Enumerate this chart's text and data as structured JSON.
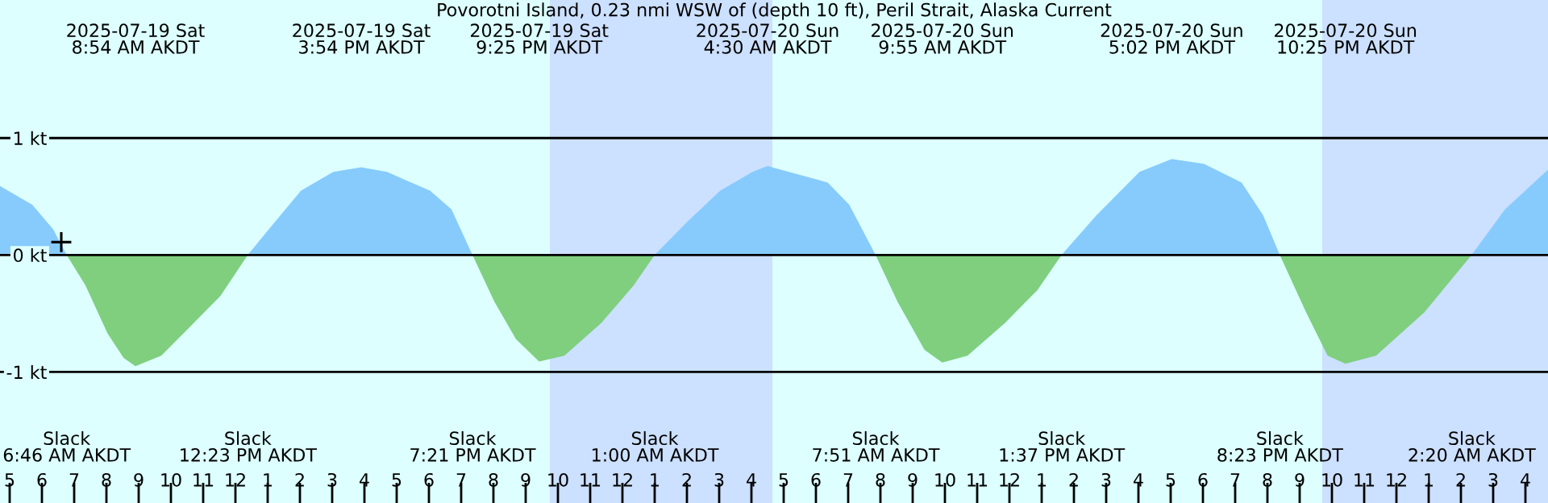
{
  "chart_data": {
    "type": "area",
    "title": "Povorotni Island, 0.23 nmi WSW of (depth 10 ft), Peril Strait, Alaska Current",
    "xlim": [
      "2025-07-19T04:42",
      "2025-07-21T04:42"
    ],
    "ylim": [
      -2.12,
      2.18
    ],
    "xticks": [
      {
        "value": "2025-07-19T05:00",
        "label": "5"
      },
      {
        "value": "2025-07-19T06:00",
        "label": "6"
      },
      {
        "value": "2025-07-19T07:00",
        "label": "7"
      },
      {
        "value": "2025-07-19T08:00",
        "label": "8"
      },
      {
        "value": "2025-07-19T09:00",
        "label": "9"
      },
      {
        "value": "2025-07-19T10:00",
        "label": "10"
      },
      {
        "value": "2025-07-19T11:00",
        "label": "11"
      },
      {
        "value": "2025-07-19T12:00",
        "label": "12"
      },
      {
        "value": "2025-07-19T13:00",
        "label": "1"
      },
      {
        "value": "2025-07-19T14:00",
        "label": "2"
      },
      {
        "value": "2025-07-19T15:00",
        "label": "3"
      },
      {
        "value": "2025-07-19T16:00",
        "label": "4"
      },
      {
        "value": "2025-07-19T17:00",
        "label": "5"
      },
      {
        "value": "2025-07-19T18:00",
        "label": "6"
      },
      {
        "value": "2025-07-19T19:00",
        "label": "7"
      },
      {
        "value": "2025-07-19T20:00",
        "label": "8"
      },
      {
        "value": "2025-07-19T21:00",
        "label": "9"
      },
      {
        "value": "2025-07-19T22:00",
        "label": "10"
      },
      {
        "value": "2025-07-19T23:00",
        "label": "11"
      },
      {
        "value": "2025-07-20T00:00",
        "label": "12"
      },
      {
        "value": "2025-07-20T01:00",
        "label": "1"
      },
      {
        "value": "2025-07-20T02:00",
        "label": "2"
      },
      {
        "value": "2025-07-20T03:00",
        "label": "3"
      },
      {
        "value": "2025-07-20T04:00",
        "label": "4"
      },
      {
        "value": "2025-07-20T05:00",
        "label": "5"
      },
      {
        "value": "2025-07-20T06:00",
        "label": "6"
      },
      {
        "value": "2025-07-20T07:00",
        "label": "7"
      },
      {
        "value": "2025-07-20T08:00",
        "label": "8"
      },
      {
        "value": "2025-07-20T09:00",
        "label": "9"
      },
      {
        "value": "2025-07-20T10:00",
        "label": "10"
      },
      {
        "value": "2025-07-20T11:00",
        "label": "11"
      },
      {
        "value": "2025-07-20T12:00",
        "label": "12"
      },
      {
        "value": "2025-07-20T13:00",
        "label": "1"
      },
      {
        "value": "2025-07-20T14:00",
        "label": "2"
      },
      {
        "value": "2025-07-20T15:00",
        "label": "3"
      },
      {
        "value": "2025-07-20T16:00",
        "label": "4"
      },
      {
        "value": "2025-07-20T17:00",
        "label": "5"
      },
      {
        "value": "2025-07-20T18:00",
        "label": "6"
      },
      {
        "value": "2025-07-20T19:00",
        "label": "7"
      },
      {
        "value": "2025-07-20T20:00",
        "label": "8"
      },
      {
        "value": "2025-07-20T21:00",
        "label": "9"
      },
      {
        "value": "2025-07-20T22:00",
        "label": "10"
      },
      {
        "value": "2025-07-20T23:00",
        "label": "11"
      },
      {
        "value": "2025-07-21T00:00",
        "label": "12"
      },
      {
        "value": "2025-07-21T01:00",
        "label": "1"
      },
      {
        "value": "2025-07-21T02:00",
        "label": "2"
      },
      {
        "value": "2025-07-21T03:00",
        "label": "3"
      },
      {
        "value": "2025-07-21T04:00",
        "label": "4"
      }
    ],
    "yticks": [
      {
        "value": 1,
        "label": "1 kt"
      },
      {
        "value": 0,
        "label": "0 kt"
      },
      {
        "value": -1,
        "label": "-1 kt"
      }
    ],
    "grid": "y",
    "bands": [
      {
        "axis": "x",
        "from": "2025-07-19T21:45",
        "to": "2025-07-20T04:39",
        "color": "#cce0ff"
      },
      {
        "axis": "x",
        "from": "2025-07-20T21:42",
        "to": "2025-07-21T04:42",
        "color": "#cce0ff"
      }
    ],
    "series": [
      {
        "color": "#87cbfd",
        "x": [
          "2025-07-19T04:42",
          "2025-07-19T05:42",
          "2025-07-19T06:21",
          "2025-07-19T06:46",
          null,
          "2025-07-19T12:23",
          "2025-07-19T13:02",
          "2025-07-19T14:02",
          "2025-07-19T15:02",
          "2025-07-19T15:54",
          "2025-07-19T16:42",
          "2025-07-19T18:02",
          "2025-07-19T18:42",
          "2025-07-19T19:21",
          null,
          "2025-07-20T01:00",
          "2025-07-20T02:02",
          "2025-07-20T03:02",
          "2025-07-20T04:02",
          "2025-07-20T04:30",
          "2025-07-20T06:22",
          "2025-07-20T07:02",
          "2025-07-20T07:51",
          null,
          "2025-07-20T13:37",
          "2025-07-20T14:42",
          "2025-07-20T16:02",
          "2025-07-20T17:02",
          "2025-07-20T18:02",
          "2025-07-20T19:12",
          "2025-07-20T19:52",
          "2025-07-20T20:23",
          null,
          "2025-07-21T02:20",
          "2025-07-21T03:22",
          "2025-07-21T04:42"
        ],
        "values": [
          0.59,
          0.43,
          0.22,
          0,
          null,
          0,
          0.22,
          0.55,
          0.71,
          0.75,
          0.71,
          0.55,
          0.39,
          0,
          null,
          0,
          0.29,
          0.55,
          0.71,
          0.76,
          0.62,
          0.43,
          0,
          null,
          0,
          0.34,
          0.71,
          0.82,
          0.78,
          0.62,
          0.34,
          0,
          null,
          0,
          0.39,
          0.73
        ]
      },
      {
        "color": "#7fcf7f",
        "x": [
          "2025-07-19T06:46",
          "2025-07-19T07:21",
          "2025-07-19T08:02",
          "2025-07-19T08:32",
          "2025-07-19T08:54",
          "2025-07-19T09:42",
          "2025-07-19T10:32",
          "2025-07-19T11:32",
          "2025-07-19T12:23",
          null,
          "2025-07-19T19:21",
          "2025-07-19T20:02",
          "2025-07-19T20:42",
          "2025-07-19T21:25",
          "2025-07-19T22:12",
          "2025-07-19T23:21",
          "2025-07-20T00:21",
          "2025-07-20T01:00",
          null,
          "2025-07-20T07:51",
          "2025-07-20T08:32",
          "2025-07-20T09:22",
          "2025-07-20T09:55",
          "2025-07-20T10:42",
          "2025-07-20T11:52",
          "2025-07-20T12:52",
          "2025-07-20T13:37",
          null,
          "2025-07-20T20:23",
          "2025-07-20T21:12",
          "2025-07-20T21:52",
          "2025-07-20T22:25",
          "2025-07-20T23:22",
          "2025-07-21T00:52",
          "2025-07-21T02:20"
        ],
        "values": [
          0,
          -0.26,
          -0.67,
          -0.88,
          -0.95,
          -0.86,
          -0.63,
          -0.35,
          0,
          null,
          0,
          -0.4,
          -0.72,
          -0.91,
          -0.86,
          -0.58,
          -0.26,
          0,
          null,
          0,
          -0.4,
          -0.81,
          -0.92,
          -0.86,
          -0.58,
          -0.3,
          0,
          null,
          0,
          -0.49,
          -0.86,
          -0.93,
          -0.86,
          -0.49,
          0
        ]
      },
      {
        "type": "scatter",
        "color": "#000000",
        "marker": "cross",
        "x": [
          "2025-07-19T06:36"
        ],
        "values": [
          0.11
        ]
      }
    ],
    "annotations": [
      "2025-07-19 Sat\n8:54 AM AKDT",
      "2025-07-19 Sat\n3:54 PM AKDT",
      "2025-07-19 Sat\n9:25 PM AKDT",
      "2025-07-20 Sun\n4:30 AM AKDT",
      "2025-07-20 Sun\n9:55 AM AKDT",
      "2025-07-20 Sun\n5:02 PM AKDT",
      "2025-07-20 Sun\n10:25 PM AKDT",
      "Slack\n6:46 AM AKDT",
      "Slack\n12:23 PM AKDT",
      "Slack\n7:21 PM AKDT",
      "Slack\n1:00 AM AKDT",
      "Slack\n7:51 AM AKDT",
      "Slack\n1:37 PM AKDT",
      "Slack\n8:23 PM AKDT",
      "Slack\n2:20 AM AKDT"
    ]
  }
}
